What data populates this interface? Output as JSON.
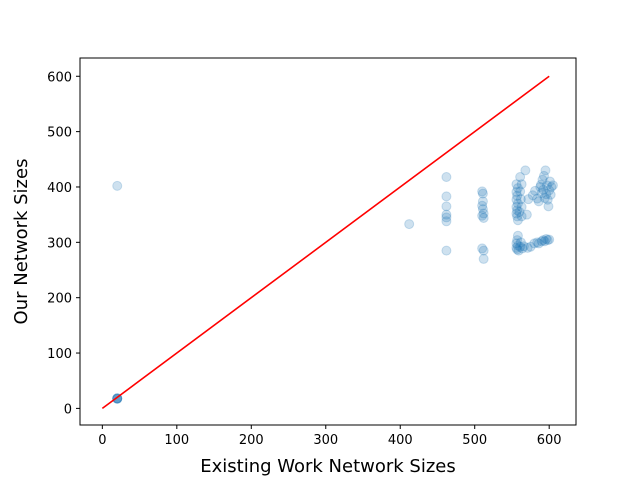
{
  "chart_data": {
    "type": "scatter",
    "title": "",
    "xlabel": "Existing Work Network Sizes",
    "ylabel": "Our Network Sizes",
    "xlim": [
      -30,
      636
    ],
    "ylim": [
      -30,
      633
    ],
    "x_ticks": [
      0,
      100,
      200,
      300,
      400,
      500,
      600
    ],
    "y_ticks": [
      0,
      100,
      200,
      300,
      400,
      500,
      600
    ],
    "grid": false,
    "legend": "none",
    "series": [
      {
        "type": "scatter",
        "color": "#1f77b4",
        "opacity": 0.22,
        "points": [
          [
            20,
            402
          ],
          [
            20,
            18
          ],
          [
            20,
            18
          ],
          [
            20,
            18
          ],
          [
            20,
            17
          ],
          [
            20,
            18
          ],
          [
            412,
            333
          ],
          [
            462,
            418
          ],
          [
            462,
            383
          ],
          [
            462,
            365
          ],
          [
            462,
            350
          ],
          [
            462,
            345
          ],
          [
            462,
            338
          ],
          [
            462,
            285
          ],
          [
            510,
            392
          ],
          [
            511,
            388
          ],
          [
            511,
            374
          ],
          [
            510,
            366
          ],
          [
            511,
            360
          ],
          [
            512,
            352
          ],
          [
            510,
            348
          ],
          [
            512,
            344
          ],
          [
            510,
            289
          ],
          [
            512,
            285
          ],
          [
            512,
            270
          ],
          [
            556,
            405
          ],
          [
            558,
            398
          ],
          [
            556,
            391
          ],
          [
            557,
            384
          ],
          [
            556,
            377
          ],
          [
            558,
            370
          ],
          [
            556,
            364
          ],
          [
            557,
            358
          ],
          [
            556,
            352
          ],
          [
            557,
            347
          ],
          [
            558,
            340
          ],
          [
            558,
            312
          ],
          [
            557,
            304
          ],
          [
            556,
            298
          ],
          [
            558,
            294
          ],
          [
            556,
            290
          ],
          [
            557,
            287
          ],
          [
            559,
            285
          ],
          [
            561,
            418
          ],
          [
            563,
            405
          ],
          [
            561,
            392
          ],
          [
            562,
            378
          ],
          [
            563,
            364
          ],
          [
            560,
            355
          ],
          [
            563,
            347
          ],
          [
            562,
            300
          ],
          [
            561,
            292
          ],
          [
            564,
            289
          ],
          [
            566,
            293
          ],
          [
            568,
            430
          ],
          [
            570,
            350
          ],
          [
            572,
            378
          ],
          [
            571,
            290
          ],
          [
            575,
            292
          ],
          [
            580,
            298
          ],
          [
            584,
            300
          ],
          [
            586,
            298
          ],
          [
            590,
            302
          ],
          [
            594,
            302
          ],
          [
            598,
            304
          ],
          [
            600,
            305
          ],
          [
            596,
            306
          ],
          [
            592,
            304
          ],
          [
            578,
            385
          ],
          [
            581,
            393
          ],
          [
            584,
            379
          ],
          [
            586,
            374
          ],
          [
            588,
            400
          ],
          [
            589,
            404
          ],
          [
            590,
            389
          ],
          [
            591,
            413
          ],
          [
            592,
            395
          ],
          [
            593,
            420
          ],
          [
            594,
            380
          ],
          [
            595,
            430
          ],
          [
            596,
            387
          ],
          [
            597,
            403
          ],
          [
            598,
            377
          ],
          [
            599,
            365
          ],
          [
            600,
            394
          ],
          [
            601,
            410
          ],
          [
            602,
            386
          ],
          [
            603,
            400
          ],
          [
            605,
            403
          ]
        ]
      },
      {
        "type": "line",
        "color": "#ff0000",
        "points": [
          [
            0,
            0
          ],
          [
            600,
            600
          ]
        ]
      }
    ]
  }
}
